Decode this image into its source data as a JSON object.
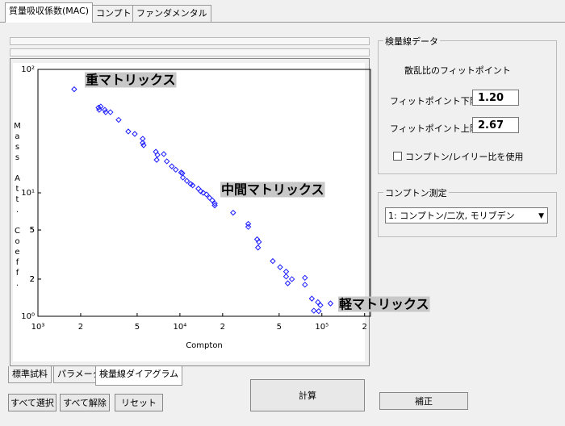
{
  "tabs": [
    "質量吸収係数(MAC)",
    "コンプトン",
    "ファンダメンタル"
  ],
  "calibration_data": {
    "title": "検量線データ",
    "subtitle": "散乱比のフィットポイント",
    "lower_label": "フィットポイント下限:",
    "lower_value": "1.20",
    "upper_label": "フィットポイント上限:",
    "upper_value": "2.67",
    "checkbox_label": "コンプトン/レイリー比を使用"
  },
  "compton": {
    "title": "コンプトン測定",
    "selected": "1: コンプトン/二次, モリブデン"
  },
  "bottom_tabs": [
    "標準試料",
    "パラメータ",
    "検量線ダイアグラム"
  ],
  "buttons": [
    "すべて選択",
    "すべて解除",
    "リセット",
    "計算",
    "補正"
  ],
  "chart_data": {
    "type": "scatter",
    "x_label": "Compton",
    "y_label": "Mass Att. Coeff.",
    "x_scale": "log",
    "y_scale": "log",
    "color": "#1a1aff",
    "annotations": [
      "重マトリックス",
      "中間マトリックス",
      "軽マトリックス"
    ],
    "xlim": [
      1000,
      220000
    ],
    "xticks": [
      {
        "value": 1000,
        "label": "10³"
      },
      {
        "value": 2000,
        "label": "2"
      },
      {
        "value": 5000,
        "label": "5"
      },
      {
        "value": 10000,
        "label": "10⁴"
      },
      {
        "value": 20000,
        "label": "2"
      },
      {
        "value": 50000,
        "label": "5"
      },
      {
        "value": 100000,
        "label": "10⁵"
      },
      {
        "value": 200000,
        "label": "2"
      }
    ],
    "ylim": [
      1,
      100
    ],
    "yticks": [
      {
        "value": 100,
        "label": "10²"
      },
      5,
      2,
      {
        "value": 10,
        "label": "10¹"
      },
      5,
      2,
      {
        "value": 1,
        "label": "10⁰"
      }
    ],
    "x": [
      1800,
      2670,
      2700,
      2770,
      2960,
      3000,
      3240,
      3700,
      4330,
      4810,
      5470,
      5470,
      5550,
      6770,
      6950,
      6860,
      7700,
      8090,
      8770,
      9350,
      10200,
      10400,
      10500,
      11200,
      11900,
      12300,
      13500,
      14000,
      14600,
      15400,
      16200,
      16900,
      17600,
      17600,
      23700,
      30300,
      30300,
      35000,
      36000,
      35500,
      45100,
      50800,
      56000,
      56000,
      57500,
      61500,
      76000,
      76000,
      85000,
      87800,
      93800,
      97700,
      95000,
      115000
    ],
    "values": [
      69,
      49,
      47,
      50,
      47,
      45,
      45,
      39,
      31.4,
      30,
      27.4,
      25.4,
      24.3,
      21.5,
      20.3,
      18.5,
      20.6,
      18,
      16.4,
      15.4,
      14.6,
      14.4,
      13.3,
      12.5,
      11.8,
      11.5,
      10.8,
      10.3,
      10,
      9.7,
      9.1,
      8.7,
      8.2,
      7.9,
      6.9,
      5.6,
      5.3,
      4.2,
      4.0,
      3.6,
      2.8,
      2.5,
      2.3,
      2.1,
      1.85,
      2.0,
      2.05,
      1.8,
      1.39,
      1.11,
      1.3,
      1.23,
      1.1,
      1.27
    ]
  }
}
